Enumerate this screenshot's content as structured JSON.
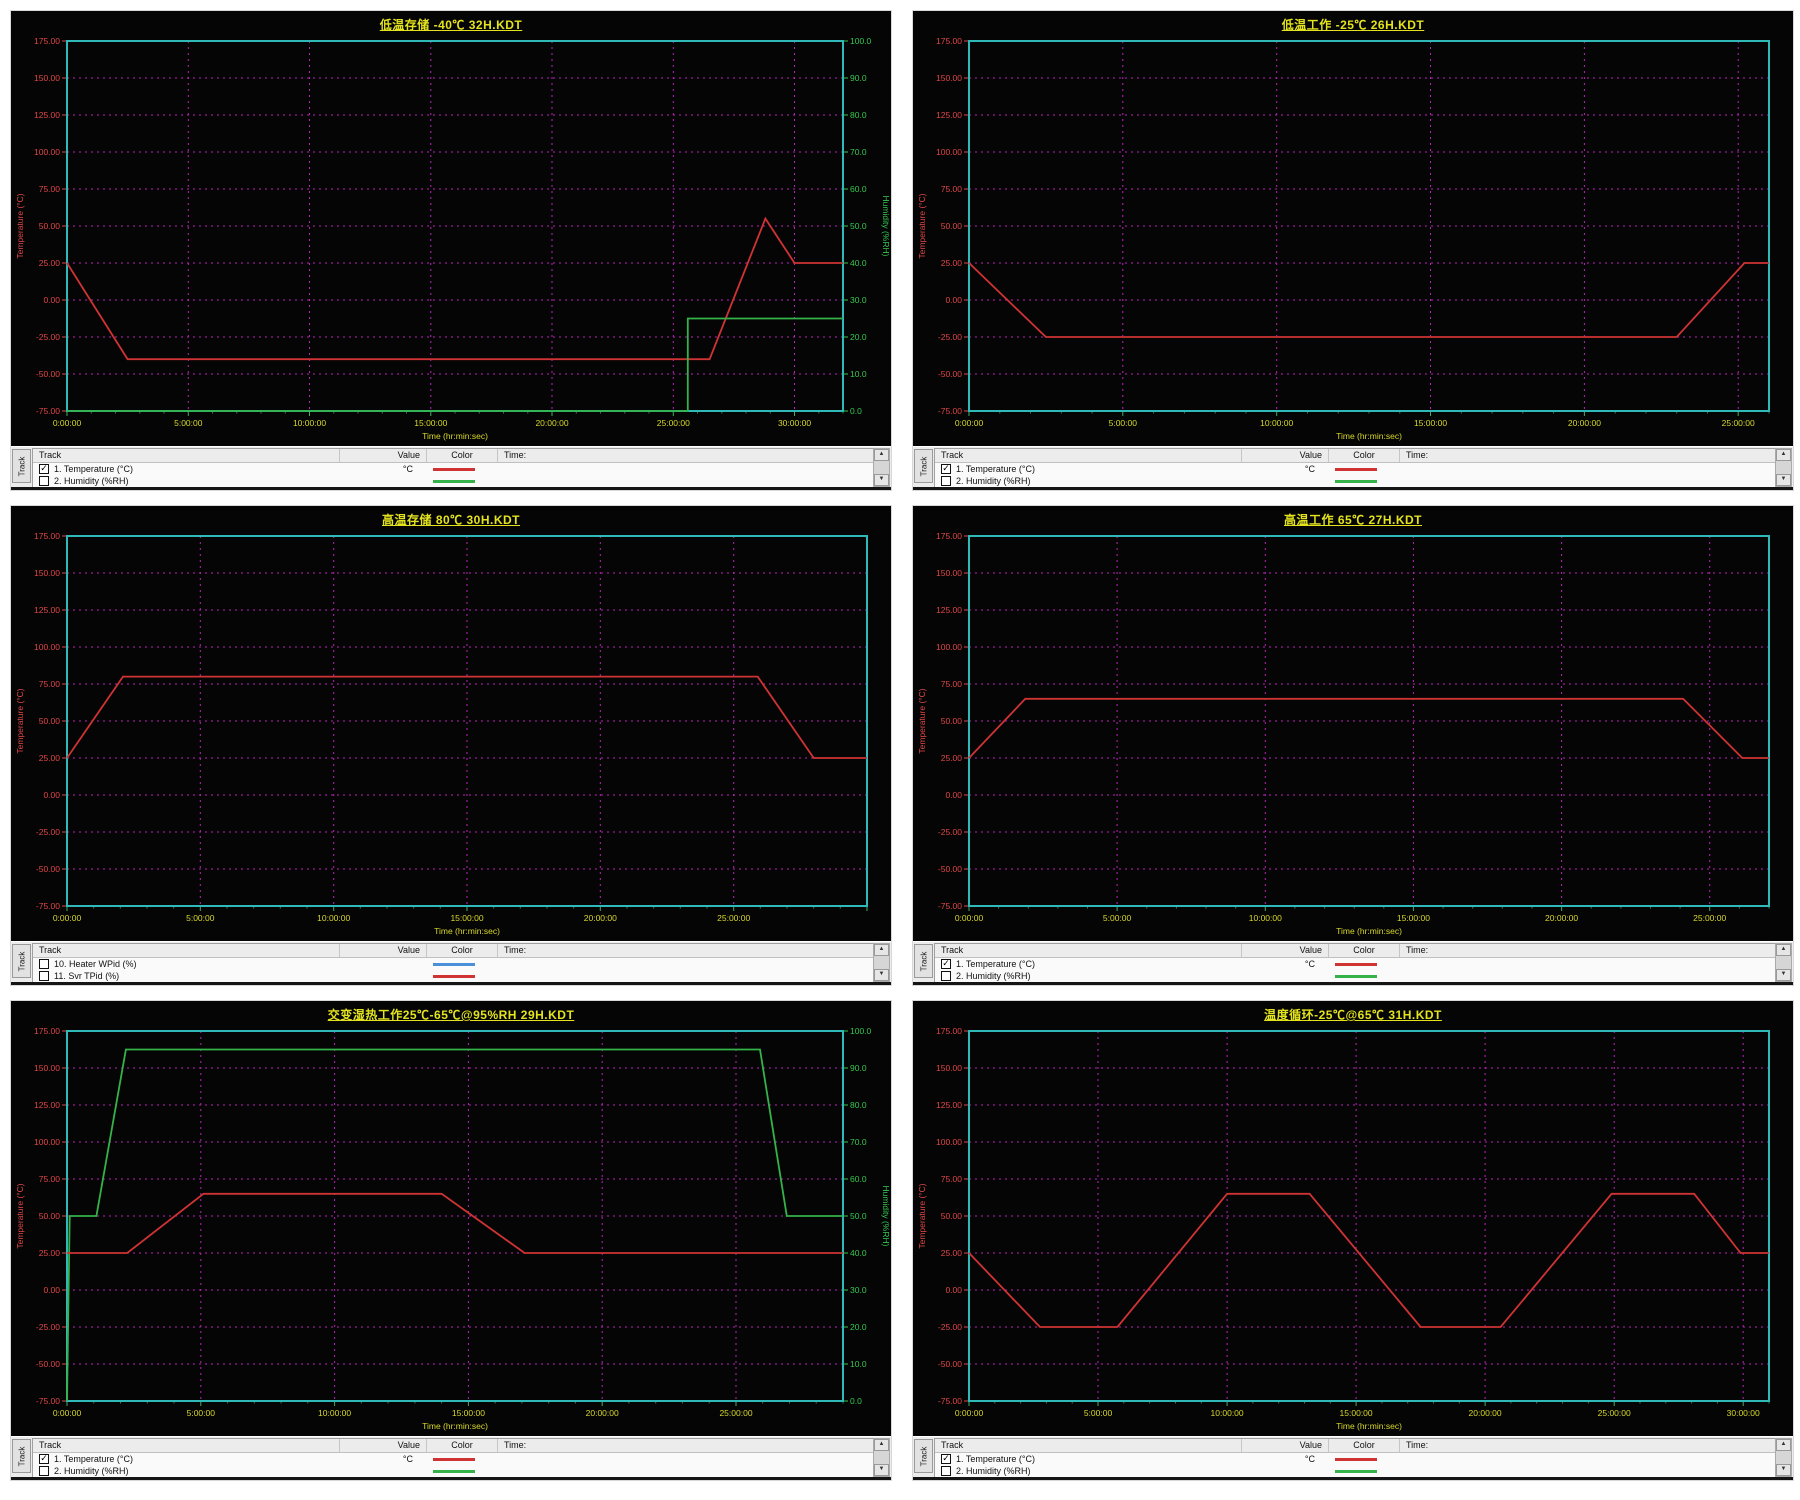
{
  "colors": {
    "plot_bg": "#050505",
    "border": "#2fb9b9",
    "grid": "#bb22bb",
    "title": "#e3e31e",
    "x_labels": "#d9d92a",
    "temp_axis": "#e14747",
    "humidity_axis": "#35c94f",
    "temperature_line": "#cf3333",
    "humidity_line": "#35b24a",
    "heater_line": "#4a90d9",
    "x_tick_major": "#3fae5f",
    "x_tick_minor": "#2f7f47"
  },
  "legend": {
    "tab": "Track",
    "header": {
      "track": "Track",
      "value": "Value",
      "color": "Color",
      "time": "Time:"
    }
  },
  "axis": {
    "left_title": "Temperature (°C)",
    "right_title": "Humidity (%RH)",
    "x_title": "Time (hr:min:sec)",
    "left_ticks": [
      {
        "v": 175,
        "label": "175.00"
      },
      {
        "v": 150,
        "label": "150.00"
      },
      {
        "v": 125,
        "label": "125.00"
      },
      {
        "v": 100,
        "label": "100.00"
      },
      {
        "v": 75,
        "label": "75.00"
      },
      {
        "v": 50,
        "label": "50.00"
      },
      {
        "v": 25,
        "label": "25.00"
      },
      {
        "v": 0,
        "label": "0.00"
      },
      {
        "v": -25,
        "label": "-25.00"
      },
      {
        "v": -50,
        "label": "-50.00"
      },
      {
        "v": -75,
        "label": "-75.00"
      }
    ],
    "right_ticks": [
      {
        "v": 100,
        "label": "100.0"
      },
      {
        "v": 90,
        "label": "90.0"
      },
      {
        "v": 80,
        "label": "80.0"
      },
      {
        "v": 70,
        "label": "70.0"
      },
      {
        "v": 60,
        "label": "60.0"
      },
      {
        "v": 50,
        "label": "50.0"
      },
      {
        "v": 40,
        "label": "40.0"
      },
      {
        "v": 30,
        "label": "30.0"
      },
      {
        "v": 20,
        "label": "20.0"
      },
      {
        "v": 10,
        "label": "10.0"
      },
      {
        "v": 0,
        "label": "0.0"
      }
    ]
  },
  "chart_data": [
    {
      "type": "line",
      "title": "低温存储 -40℃ 32H.KDT",
      "x_max": 32,
      "ylim_temp": [
        -75,
        175
      ],
      "ylim_humidity": [
        0,
        100
      ],
      "has_right_axis": true,
      "x_ticks": [
        {
          "t": 0,
          "label": "0:00:00"
        },
        {
          "t": 5,
          "label": "5:00:00"
        },
        {
          "t": 10,
          "label": "10:00:00"
        },
        {
          "t": 15,
          "label": "15:00:00"
        },
        {
          "t": 20,
          "label": "20:00:00"
        },
        {
          "t": 25,
          "label": "25:00:00"
        },
        {
          "t": 30,
          "label": "30:00:00"
        }
      ],
      "series": [
        {
          "name": "temperature",
          "axis": "temp",
          "color": "#cf3333",
          "points": [
            [
              0,
              25
            ],
            [
              2.5,
              -40
            ],
            [
              26.5,
              -40
            ],
            [
              28.8,
              55
            ],
            [
              30,
              25
            ],
            [
              32,
              25
            ]
          ]
        },
        {
          "name": "humidity",
          "axis": "humidity",
          "color": "#35b24a",
          "points": [
            [
              0,
              0
            ],
            [
              25.6,
              0
            ],
            [
              25.6,
              25
            ],
            [
              32,
              25
            ]
          ]
        }
      ],
      "legend_rows": [
        {
          "checked": true,
          "label": "1. Temperature (°C)",
          "value": "°C",
          "color": "#cf3333"
        },
        {
          "checked": false,
          "label": "2. Humidity (%RH)",
          "value": "",
          "color": "#35b24a"
        }
      ],
      "third_row_partial": true
    },
    {
      "type": "line",
      "title": "低温工作 -25℃ 26H.KDT",
      "x_max": 26,
      "ylim_temp": [
        -75,
        175
      ],
      "ylim_humidity": [
        0,
        100
      ],
      "has_right_axis": false,
      "x_ticks": [
        {
          "t": 0,
          "label": "0:00:00"
        },
        {
          "t": 5,
          "label": "5:00:00"
        },
        {
          "t": 10,
          "label": "10:00:00"
        },
        {
          "t": 15,
          "label": "15:00:00"
        },
        {
          "t": 20,
          "label": "20:00:00"
        },
        {
          "t": 25,
          "label": "25:00:00"
        }
      ],
      "series": [
        {
          "name": "temperature",
          "axis": "temp",
          "color": "#cf3333",
          "points": [
            [
              0,
              25
            ],
            [
              2.5,
              -25
            ],
            [
              23,
              -25
            ],
            [
              25.2,
              25
            ],
            [
              26,
              25
            ]
          ]
        }
      ],
      "legend_rows": [
        {
          "checked": true,
          "label": "1. Temperature (°C)",
          "value": "°C",
          "color": "#cf3333"
        },
        {
          "checked": false,
          "label": "2. Humidity (%RH)",
          "value": "",
          "color": "#35b24a"
        }
      ],
      "third_row_partial": true
    },
    {
      "type": "line",
      "title": "高温存储 80℃ 30H.KDT",
      "x_max": 30,
      "ylim_temp": [
        -75,
        175
      ],
      "ylim_humidity": [
        0,
        100
      ],
      "has_right_axis": false,
      "x_ticks": [
        {
          "t": 0,
          "label": "0:00:00"
        },
        {
          "t": 5,
          "label": "5:00:00"
        },
        {
          "t": 10,
          "label": "10:00:00"
        },
        {
          "t": 15,
          "label": "15:00:00"
        },
        {
          "t": 20,
          "label": "20:00:00"
        },
        {
          "t": 25,
          "label": "25:00:00"
        }
      ],
      "series": [
        {
          "name": "temperature",
          "axis": "temp",
          "color": "#cf3333",
          "points": [
            [
              0,
              25
            ],
            [
              2.1,
              80
            ],
            [
              25.9,
              80
            ],
            [
              28,
              25
            ],
            [
              30,
              25
            ]
          ]
        }
      ],
      "legend_rows": [
        {
          "checked": false,
          "label": "10. Heater WPid (%)",
          "value": "",
          "color": "#4a90d9"
        },
        {
          "checked": false,
          "label": "11. Svr TPid (%)",
          "value": "",
          "color": "#cf3333"
        }
      ],
      "third_row_partial": false
    },
    {
      "type": "line",
      "title": "高温工作 65℃ 27H.KDT",
      "x_max": 27,
      "ylim_temp": [
        -75,
        175
      ],
      "ylim_humidity": [
        0,
        100
      ],
      "has_right_axis": false,
      "x_ticks": [
        {
          "t": 0,
          "label": "0:00:00"
        },
        {
          "t": 5,
          "label": "5:00:00"
        },
        {
          "t": 10,
          "label": "10:00:00"
        },
        {
          "t": 15,
          "label": "15:00:00"
        },
        {
          "t": 20,
          "label": "20:00:00"
        },
        {
          "t": 25,
          "label": "25:00:00"
        }
      ],
      "series": [
        {
          "name": "temperature",
          "axis": "temp",
          "color": "#cf3333",
          "points": [
            [
              0,
              25
            ],
            [
              1.9,
              65
            ],
            [
              24.1,
              65
            ],
            [
              26.1,
              25
            ],
            [
              27,
              25
            ]
          ]
        }
      ],
      "legend_rows": [
        {
          "checked": true,
          "label": "1. Temperature (°C)",
          "value": "°C",
          "color": "#cf3333"
        },
        {
          "checked": false,
          "label": "2. Humidity (%RH)",
          "value": "",
          "color": "#35b24a"
        }
      ],
      "third_row_partial": true
    },
    {
      "type": "line",
      "title": "交变湿热工作25℃-65℃@95%RH 29H.KDT",
      "x_max": 29,
      "ylim_temp": [
        -75,
        175
      ],
      "ylim_humidity": [
        0,
        100
      ],
      "has_right_axis": true,
      "x_ticks": [
        {
          "t": 0,
          "label": "0:00:00"
        },
        {
          "t": 5,
          "label": "5:00:00"
        },
        {
          "t": 10,
          "label": "10:00:00"
        },
        {
          "t": 15,
          "label": "15:00:00"
        },
        {
          "t": 20,
          "label": "20:00:00"
        },
        {
          "t": 25,
          "label": "25:00:00"
        }
      ],
      "series": [
        {
          "name": "humidity",
          "axis": "humidity",
          "color": "#35b24a",
          "points": [
            [
              0,
              0
            ],
            [
              0.1,
              50
            ],
            [
              1.1,
              50
            ],
            [
              2.2,
              95
            ],
            [
              25.9,
              95
            ],
            [
              26.9,
              50
            ],
            [
              29,
              50
            ]
          ]
        },
        {
          "name": "temperature",
          "axis": "temp",
          "color": "#cf3333",
          "points": [
            [
              0,
              25
            ],
            [
              2.25,
              25
            ],
            [
              5.1,
              65
            ],
            [
              14,
              65
            ],
            [
              17.1,
              25
            ],
            [
              29,
              25
            ]
          ]
        }
      ],
      "legend_rows": [
        {
          "checked": true,
          "label": "1. Temperature (°C)",
          "value": "°C",
          "color": "#cf3333"
        },
        {
          "checked": false,
          "label": "2. Humidity (%RH)",
          "value": "",
          "color": "#35b24a"
        }
      ],
      "third_row_partial": true
    },
    {
      "type": "line",
      "title": "温度循环-25℃@65℃ 31H.KDT",
      "x_max": 31,
      "ylim_temp": [
        -75,
        175
      ],
      "ylim_humidity": [
        0,
        100
      ],
      "has_right_axis": false,
      "x_ticks": [
        {
          "t": 0,
          "label": "0:00:00"
        },
        {
          "t": 5,
          "label": "5:00:00"
        },
        {
          "t": 10,
          "label": "10:00:00"
        },
        {
          "t": 15,
          "label": "15:00:00"
        },
        {
          "t": 20,
          "label": "20:00:00"
        },
        {
          "t": 25,
          "label": "25:00:00"
        },
        {
          "t": 30,
          "label": "30:00:00"
        }
      ],
      "series": [
        {
          "name": "temperature",
          "axis": "temp",
          "color": "#cf3333",
          "points": [
            [
              0,
              25
            ],
            [
              2.75,
              -25
            ],
            [
              5.75,
              -25
            ],
            [
              10,
              65
            ],
            [
              13.2,
              65
            ],
            [
              17.5,
              -25
            ],
            [
              20.6,
              -25
            ],
            [
              24.9,
              65
            ],
            [
              28.1,
              65
            ],
            [
              29.9,
              25
            ],
            [
              31,
              25
            ]
          ]
        }
      ],
      "legend_rows": [
        {
          "checked": true,
          "label": "1. Temperature (°C)",
          "value": "°C",
          "color": "#cf3333"
        },
        {
          "checked": false,
          "label": "2. Humidity (%RH)",
          "value": "",
          "color": "#35b24a"
        }
      ],
      "third_row_partial": true
    }
  ]
}
